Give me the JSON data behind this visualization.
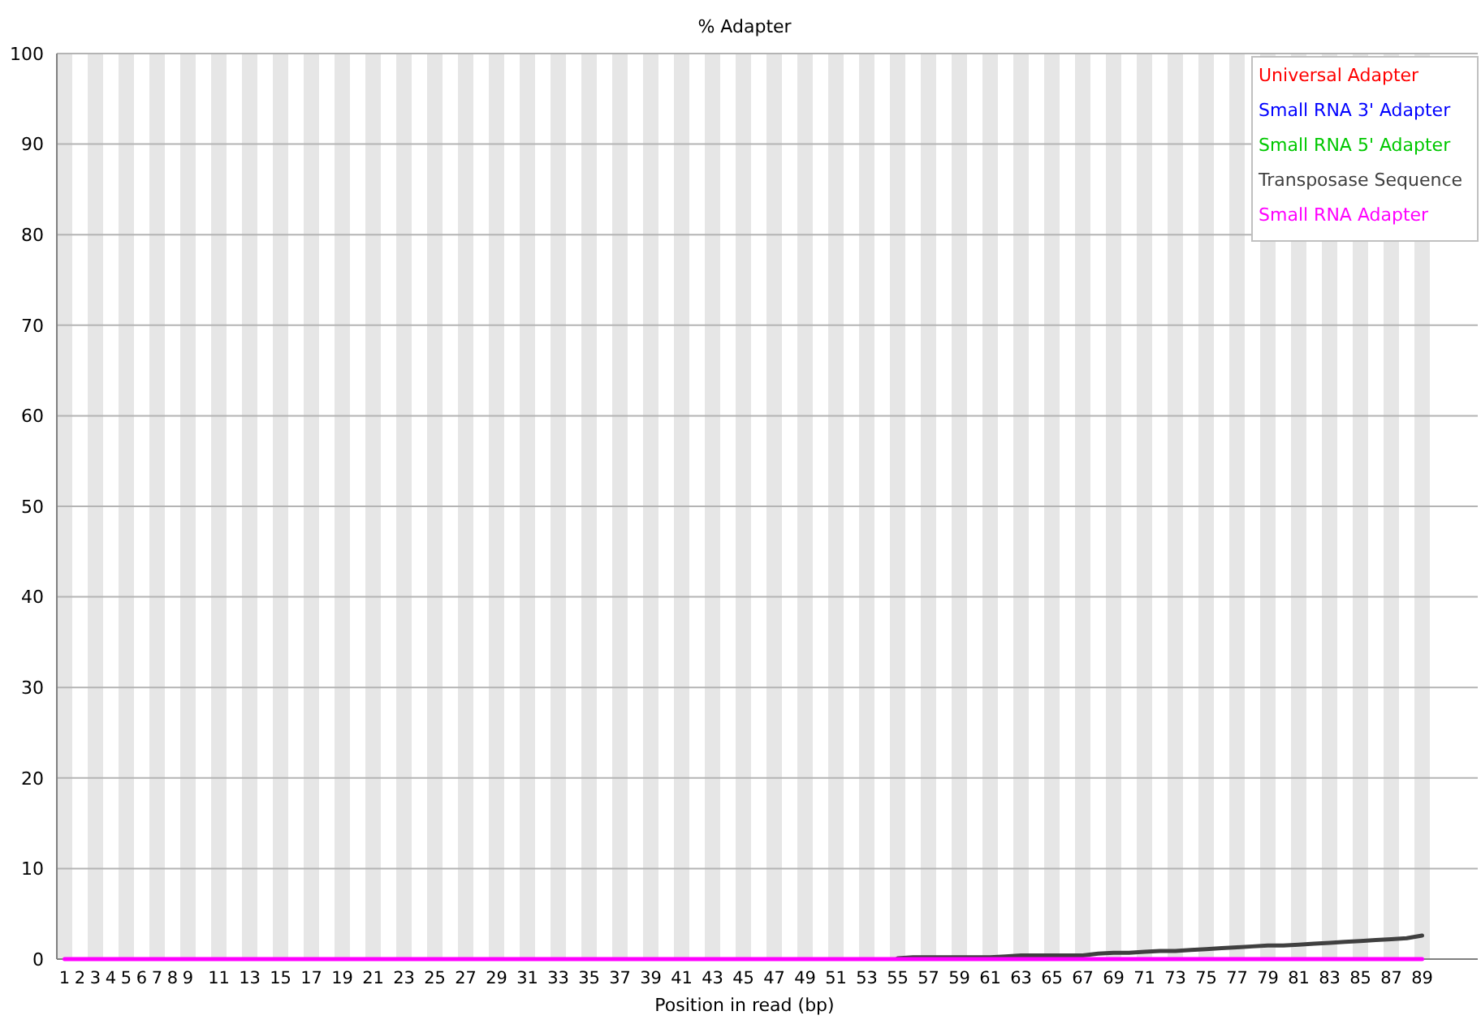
{
  "chart_data": {
    "type": "line",
    "title": "% Adapter",
    "xlabel": "Position in read (bp)",
    "categories": [
      "1",
      "2",
      "3",
      "4",
      "5",
      "6",
      "7",
      "8",
      "9",
      null,
      "11",
      null,
      "13",
      null,
      "15",
      null,
      "17",
      null,
      "19",
      null,
      "21",
      null,
      "23",
      null,
      "25",
      null,
      "27",
      null,
      "29",
      null,
      "31",
      null,
      "33",
      null,
      "35",
      null,
      "37",
      null,
      "39",
      null,
      "41",
      null,
      "43",
      null,
      "45",
      null,
      "47",
      null,
      "49",
      null,
      "51",
      null,
      "53",
      null,
      "55",
      null,
      "57",
      null,
      "59",
      null,
      "61",
      null,
      "63",
      null,
      "65",
      null,
      "67",
      null,
      "69",
      null,
      "71",
      null,
      "73",
      null,
      "75",
      null,
      "77",
      null,
      "79",
      null,
      "81",
      null,
      "83",
      null,
      "85",
      null,
      "87",
      null,
      "89"
    ],
    "series": [
      {
        "name": "Universal Adapter",
        "color": "#ff0000",
        "values": [
          null,
          null,
          null,
          null,
          null,
          null,
          null,
          null,
          null,
          null,
          null,
          null,
          null,
          null,
          null,
          null,
          null,
          null,
          null,
          null,
          null,
          null,
          null,
          null,
          null,
          null,
          null,
          null,
          null,
          null,
          null,
          null,
          null,
          null,
          null,
          null,
          null,
          null,
          null,
          null,
          null,
          null,
          null,
          null,
          null,
          null,
          null,
          null,
          null,
          null,
          null,
          null,
          null,
          null,
          null,
          null,
          null,
          null,
          null,
          null,
          null,
          null,
          null,
          null,
          null,
          null,
          null,
          null,
          null,
          null,
          null,
          null,
          null,
          null,
          null,
          null,
          null,
          null,
          null,
          null,
          null,
          null,
          null,
          null,
          null,
          null,
          null,
          null,
          null
        ]
      },
      {
        "name": "Small RNA 3' Adapter",
        "color": "#0000ff",
        "values": [
          null,
          null,
          null,
          null,
          null,
          null,
          null,
          null,
          null,
          null,
          null,
          null,
          null,
          null,
          null,
          null,
          null,
          null,
          null,
          null,
          null,
          null,
          null,
          null,
          null,
          null,
          null,
          null,
          null,
          null,
          null,
          null,
          null,
          null,
          null,
          null,
          null,
          null,
          null,
          null,
          null,
          null,
          null,
          null,
          null,
          null,
          null,
          null,
          null,
          null,
          null,
          null,
          null,
          null,
          null,
          null,
          null,
          null,
          null,
          null,
          null,
          null,
          null,
          null,
          null,
          null,
          null,
          null,
          null,
          null,
          null,
          null,
          null,
          null,
          null,
          null,
          null,
          null,
          null,
          null,
          null,
          null,
          null,
          null,
          null,
          null,
          null,
          null,
          null
        ]
      },
      {
        "name": "Small RNA 5' Adapter",
        "color": "#00c800",
        "values": [
          null,
          null,
          null,
          null,
          null,
          null,
          null,
          null,
          null,
          null,
          null,
          null,
          null,
          null,
          null,
          null,
          null,
          null,
          null,
          null,
          null,
          null,
          null,
          null,
          null,
          null,
          null,
          null,
          null,
          null,
          null,
          null,
          null,
          null,
          null,
          null,
          null,
          null,
          null,
          null,
          null,
          null,
          null,
          null,
          null,
          null,
          null,
          null,
          null,
          null,
          null,
          null,
          null,
          null,
          null,
          null,
          null,
          null,
          null,
          null,
          null,
          null,
          null,
          null,
          null,
          null,
          null,
          null,
          null,
          null,
          null,
          null,
          null,
          null,
          null,
          null,
          null,
          null,
          null,
          null,
          null,
          null,
          null,
          null,
          null,
          null,
          null,
          null,
          null
        ]
      },
      {
        "name": "Transposase Sequence",
        "color": "#404040",
        "values": [
          null,
          null,
          null,
          null,
          null,
          null,
          null,
          null,
          null,
          null,
          null,
          null,
          null,
          null,
          null,
          null,
          null,
          null,
          null,
          null,
          null,
          null,
          null,
          null,
          null,
          null,
          null,
          null,
          null,
          null,
          null,
          null,
          null,
          null,
          null,
          null,
          null,
          null,
          null,
          null,
          null,
          null,
          null,
          null,
          null,
          null,
          null,
          null,
          null,
          null,
          null,
          null,
          null,
          null,
          0.1,
          0.2,
          0.2,
          0.2,
          0.2,
          0.2,
          0.2,
          0.3,
          0.4,
          0.4,
          0.4,
          0.4,
          0.4,
          0.6,
          0.7,
          0.7,
          0.8,
          0.9,
          0.9,
          1.0,
          1.1,
          1.2,
          1.3,
          1.4,
          1.5,
          1.5,
          1.6,
          1.7,
          1.8,
          1.9,
          2.0,
          2.1,
          2.2,
          2.3,
          2.6
        ]
      },
      {
        "name": "Small RNA Adapter",
        "color": "#ff00ff",
        "values": [
          0,
          0,
          0,
          0,
          0,
          0,
          0,
          0,
          0,
          0,
          0,
          0,
          0,
          0,
          0,
          0,
          0,
          0,
          0,
          0,
          0,
          0,
          0,
          0,
          0,
          0,
          0,
          0,
          0,
          0,
          0,
          0,
          0,
          0,
          0,
          0,
          0,
          0,
          0,
          0,
          0,
          0,
          0,
          0,
          0,
          0,
          0,
          0,
          0,
          0,
          0,
          0,
          0,
          0,
          0,
          0,
          0,
          0,
          0,
          0,
          0,
          0,
          0,
          0,
          0,
          0,
          0,
          0,
          0,
          0,
          0,
          0,
          0,
          0,
          0,
          0,
          0,
          0,
          0,
          0,
          0,
          0,
          0,
          0,
          0,
          0,
          0,
          0,
          0
        ]
      }
    ],
    "ylim": [
      0,
      100
    ],
    "yticks": [
      0,
      10,
      20,
      30,
      40,
      50,
      60,
      70,
      80,
      90,
      100
    ],
    "grid": "y",
    "legend": "top right",
    "marker": "none",
    "line_style": "solid"
  }
}
